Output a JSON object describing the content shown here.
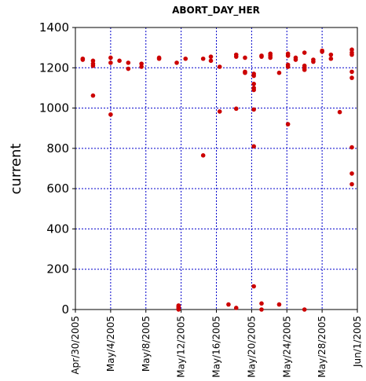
{
  "chart_data": {
    "type": "scatter",
    "title": "ABORT_DAY_HER",
    "xlabel": "",
    "ylabel": "current",
    "xlim": [
      "2005-04-30",
      "2005-06-01"
    ],
    "ylim": [
      0,
      1400
    ],
    "ytick_labels": [
      "0",
      "200",
      "400",
      "600",
      "800",
      "1000",
      "1200",
      "1400"
    ],
    "xtick_labels": [
      "Apr/30/2005",
      "May/4/2005",
      "May/8/2005",
      "May/12/2005",
      "May/16/2005",
      "May/20/2005",
      "May/24/2005",
      "May/28/2005",
      "Jun/1/2005"
    ],
    "grid": true,
    "marker_color": "#cc0000",
    "grid_color": "#0000cc",
    "series": [
      {
        "points": [
          [
            "2005-04-30T20:00",
            1245
          ],
          [
            "2005-04-30T20:00",
            1240
          ],
          [
            "2005-05-02T00:00",
            1235
          ],
          [
            "2005-05-02T00:00",
            1220
          ],
          [
            "2005-05-02T00:00",
            1210
          ],
          [
            "2005-05-02T00:00",
            1062
          ],
          [
            "2005-05-04T00:00",
            1250
          ],
          [
            "2005-05-04T00:00",
            1225
          ],
          [
            "2005-05-04T00:00",
            968
          ],
          [
            "2005-05-05T00:00",
            1235
          ],
          [
            "2005-05-06T00:00",
            1225
          ],
          [
            "2005-05-06T00:00",
            1195
          ],
          [
            "2005-05-07T12:00",
            1220
          ],
          [
            "2005-05-07T12:00",
            1205
          ],
          [
            "2005-05-09T12:00",
            1250
          ],
          [
            "2005-05-09T12:00",
            1245
          ],
          [
            "2005-05-11T12:00",
            1225
          ],
          [
            "2005-05-11T17:00",
            20
          ],
          [
            "2005-05-11T17:00",
            15
          ],
          [
            "2005-05-11T17:00",
            10
          ],
          [
            "2005-05-11T17:00",
            5
          ],
          [
            "2005-05-11T17:00",
            0
          ],
          [
            "2005-05-12T12:00",
            1245
          ],
          [
            "2005-05-14T12:00",
            1245
          ],
          [
            "2005-05-14T12:00",
            765
          ],
          [
            "2005-05-15T09:00",
            1255
          ],
          [
            "2005-05-15T09:00",
            1235
          ],
          [
            "2005-05-16T09:00",
            1205
          ],
          [
            "2005-05-16T09:00",
            983
          ],
          [
            "2005-05-17T09:00",
            25
          ],
          [
            "2005-05-18T06:00",
            1265
          ],
          [
            "2005-05-18T06:00",
            1255
          ],
          [
            "2005-05-18T06:00",
            997
          ],
          [
            "2005-05-18T06:00",
            8
          ],
          [
            "2005-05-19T06:00",
            1250
          ],
          [
            "2005-05-19T06:00",
            1180
          ],
          [
            "2005-05-19T06:00",
            1175
          ],
          [
            "2005-05-20T06:00",
            1170
          ],
          [
            "2005-05-20T06:00",
            1160
          ],
          [
            "2005-05-20T06:00",
            1120
          ],
          [
            "2005-05-20T06:00",
            1100
          ],
          [
            "2005-05-20T06:00",
            1090
          ],
          [
            "2005-05-20T06:00",
            993
          ],
          [
            "2005-05-20T06:00",
            810
          ],
          [
            "2005-05-20T06:00",
            115
          ],
          [
            "2005-05-21T03:00",
            1260
          ],
          [
            "2005-05-21T03:00",
            1255
          ],
          [
            "2005-05-21T03:00",
            30
          ],
          [
            "2005-05-21T03:00",
            0
          ],
          [
            "2005-05-22T03:00",
            1270
          ],
          [
            "2005-05-22T03:00",
            1260
          ],
          [
            "2005-05-22T03:00",
            1250
          ],
          [
            "2005-05-23T03:00",
            1175
          ],
          [
            "2005-05-23T03:00",
            25
          ],
          [
            "2005-05-24T03:00",
            1270
          ],
          [
            "2005-05-24T03:00",
            1260
          ],
          [
            "2005-05-24T03:00",
            1215
          ],
          [
            "2005-05-24T03:00",
            1205
          ],
          [
            "2005-05-24T03:00",
            920
          ],
          [
            "2005-05-25T00:00",
            1250
          ],
          [
            "2005-05-25T00:00",
            1240
          ],
          [
            "2005-05-26T00:00",
            1275
          ],
          [
            "2005-05-26T00:00",
            1210
          ],
          [
            "2005-05-26T00:00",
            1200
          ],
          [
            "2005-05-26T00:00",
            1190
          ],
          [
            "2005-05-26T00:00",
            0
          ],
          [
            "2005-05-27T00:00",
            1240
          ],
          [
            "2005-05-27T00:00",
            1230
          ],
          [
            "2005-05-28T00:00",
            1285
          ],
          [
            "2005-05-28T00:00",
            1280
          ],
          [
            "2005-05-29T00:00",
            1265
          ],
          [
            "2005-05-29T00:00",
            1245
          ],
          [
            "2005-05-30T00:00",
            980
          ],
          [
            "2005-05-31T09:00",
            1290
          ],
          [
            "2005-05-31T09:00",
            1275
          ],
          [
            "2005-05-31T09:00",
            1265
          ],
          [
            "2005-05-31T09:00",
            1180
          ],
          [
            "2005-05-31T09:00",
            1150
          ],
          [
            "2005-05-31T09:00",
            805
          ],
          [
            "2005-05-31T09:00",
            675
          ],
          [
            "2005-05-31T09:00",
            622
          ]
        ]
      }
    ]
  }
}
